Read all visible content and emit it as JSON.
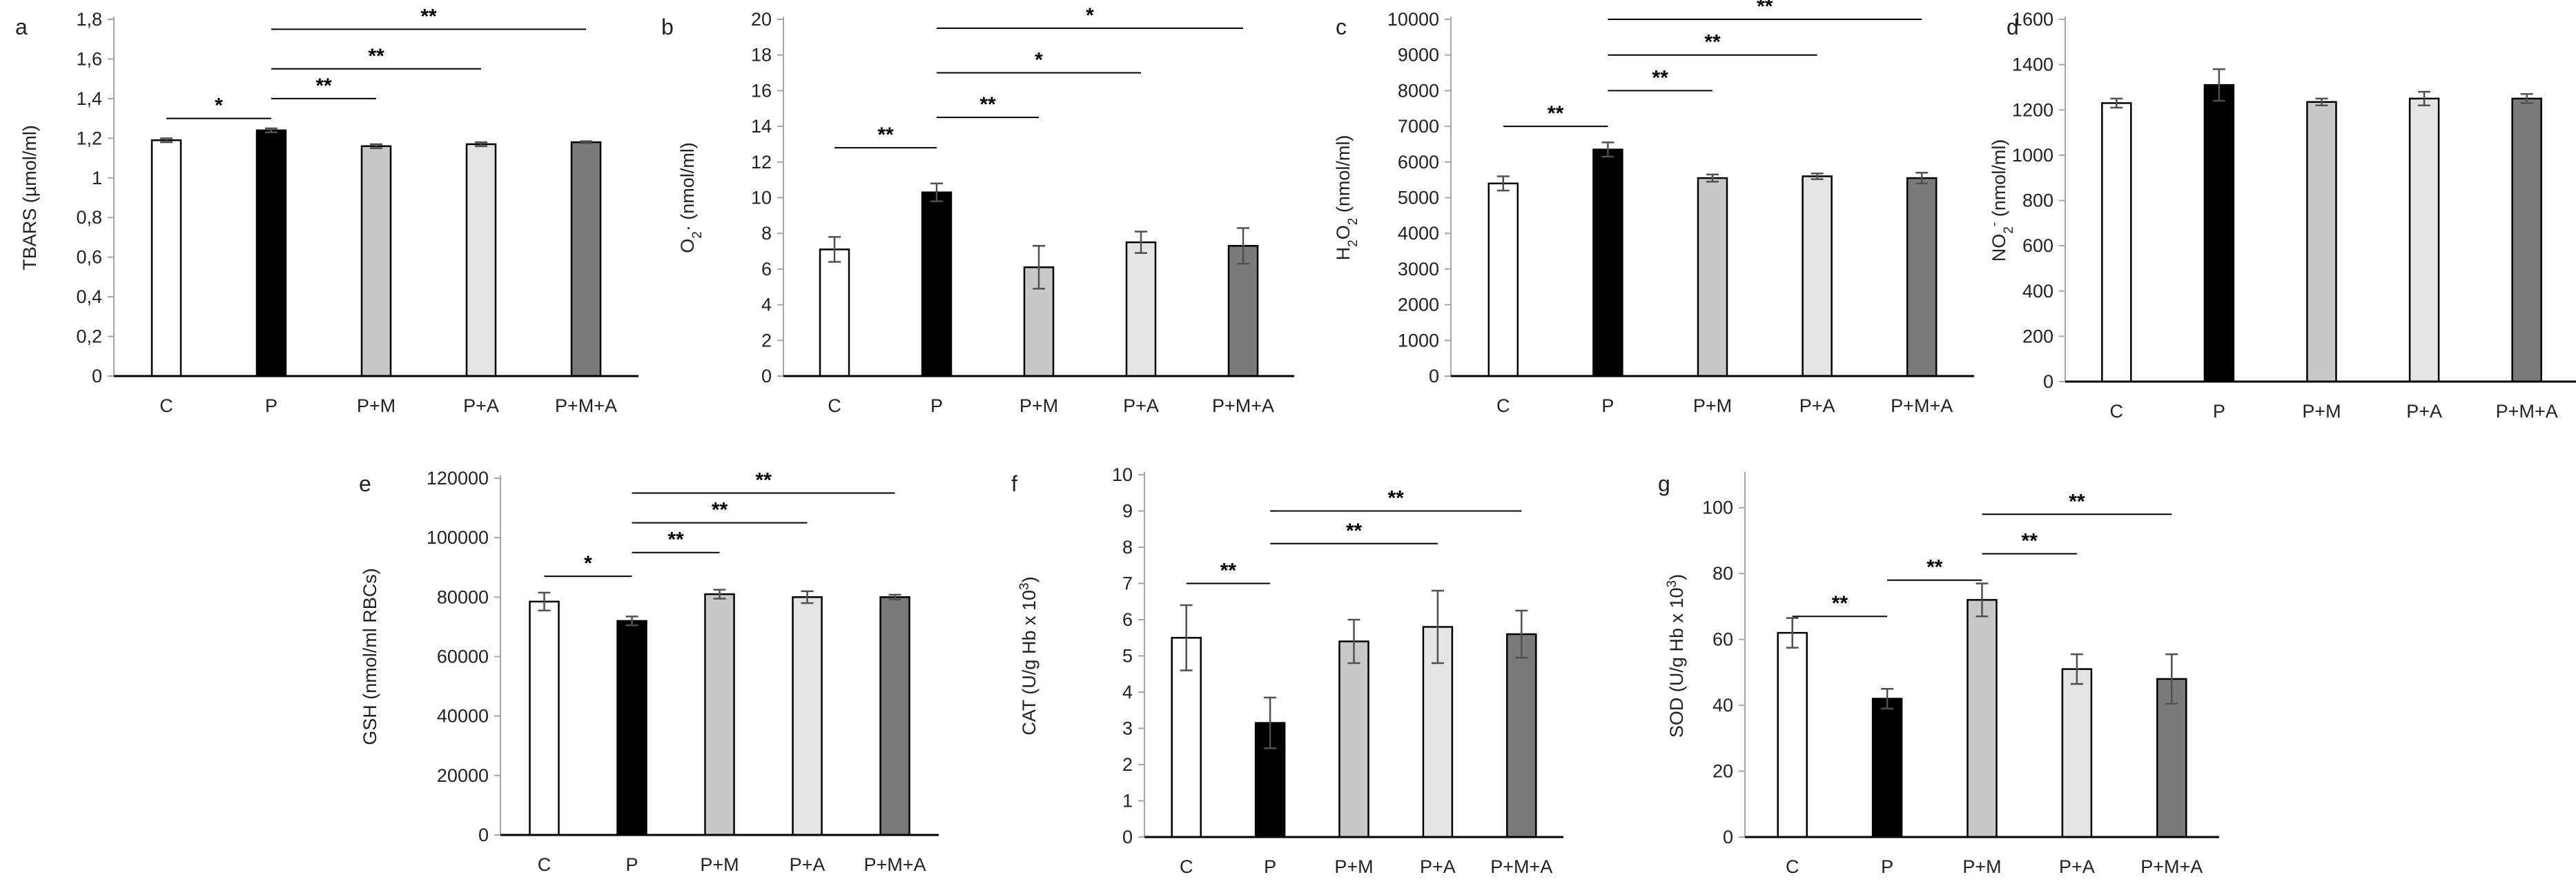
{
  "figure": {
    "title": ""
  },
  "colors": {
    "C": "#ffffff",
    "P": "#000000",
    "P+M": "#c8c8c8",
    "P+A": "#e4e4e4",
    "P+M+A": "#7a7a7a",
    "stroke": "#000000",
    "axis": "#a6a6a6",
    "errorbar": "#505050"
  },
  "chart_data": [
    {
      "panel_label": "a",
      "type": "bar",
      "title": "",
      "ylabel_parts": [
        {
          "t": "TBARS (µmol/ml)"
        }
      ],
      "categories": [
        "C",
        "P",
        "P+M",
        "P+A",
        "P+M+A"
      ],
      "values": [
        1.19,
        1.24,
        1.16,
        1.17,
        1.18
      ],
      "errors": [
        0.01,
        0.01,
        0.01,
        0.01,
        0.005
      ],
      "ylim": [
        0,
        1.8
      ],
      "ytick_values": [
        0,
        0.2,
        0.4,
        0.6,
        0.8,
        1,
        1.2,
        1.4,
        1.6,
        1.8
      ],
      "ytick_labels": [
        "0",
        "0,2",
        "0,4",
        "0,6",
        "0,8",
        "1",
        "1,2",
        "1,4",
        "1,6",
        "1,8"
      ],
      "significance": [
        {
          "from": 0,
          "to": 1,
          "level": 1.3,
          "label": "*"
        },
        {
          "from": 1,
          "to": 2,
          "level": 1.4,
          "label": "**"
        },
        {
          "from": 1,
          "to": 3,
          "level": 1.55,
          "label": "**"
        },
        {
          "from": 1,
          "to": 4,
          "level": 1.75,
          "label": "**"
        }
      ]
    },
    {
      "panel_label": "b",
      "type": "bar",
      "title": "",
      "ylabel_parts": [
        {
          "t": "O"
        },
        {
          "t": "2",
          "s": "sub"
        },
        {
          "t": "· (nmol/ml)"
        }
      ],
      "categories": [
        "C",
        "P",
        "P+M",
        "P+A",
        "P+M+A"
      ],
      "values": [
        7.1,
        10.3,
        6.1,
        7.5,
        7.3
      ],
      "errors": [
        0.7,
        0.5,
        1.2,
        0.6,
        1.0
      ],
      "ylim": [
        0,
        20
      ],
      "ytick_values": [
        0,
        2,
        4,
        6,
        8,
        10,
        12,
        14,
        16,
        18,
        20
      ],
      "ytick_labels": [
        "0",
        "2",
        "4",
        "6",
        "8",
        "10",
        "12",
        "14",
        "16",
        "18",
        "20"
      ],
      "significance": [
        {
          "from": 0,
          "to": 1,
          "level": 12.8,
          "label": "**"
        },
        {
          "from": 1,
          "to": 2,
          "level": 14.5,
          "label": "**"
        },
        {
          "from": 1,
          "to": 3,
          "level": 17.0,
          "label": "*"
        },
        {
          "from": 1,
          "to": 4,
          "level": 19.5,
          "label": "*"
        }
      ]
    },
    {
      "panel_label": "c",
      "type": "bar",
      "title": "",
      "ylabel_parts": [
        {
          "t": "H"
        },
        {
          "t": "2",
          "s": "sub"
        },
        {
          "t": "O"
        },
        {
          "t": "2",
          "s": "sub"
        },
        {
          "t": " (nmol/ml)"
        }
      ],
      "categories": [
        "C",
        "P",
        "P+M",
        "P+A",
        "P+M+A"
      ],
      "values": [
        5400,
        6350,
        5550,
        5600,
        5550
      ],
      "errors": [
        200,
        200,
        100,
        80,
        150
      ],
      "ylim": [
        0,
        10000
      ],
      "ytick_values": [
        0,
        1000,
        2000,
        3000,
        4000,
        5000,
        6000,
        7000,
        8000,
        9000,
        10000
      ],
      "ytick_labels": [
        "0",
        "1000",
        "2000",
        "3000",
        "4000",
        "5000",
        "6000",
        "7000",
        "8000",
        "9000",
        "10000"
      ],
      "significance": [
        {
          "from": 0,
          "to": 1,
          "level": 7000,
          "label": "**"
        },
        {
          "from": 1,
          "to": 2,
          "level": 8000,
          "label": "**"
        },
        {
          "from": 1,
          "to": 3,
          "level": 9000,
          "label": "**"
        },
        {
          "from": 1,
          "to": 4,
          "level": 10000,
          "label": "**"
        }
      ]
    },
    {
      "panel_label": "d",
      "type": "bar",
      "title": "",
      "ylabel_parts": [
        {
          "t": "NO"
        },
        {
          "t": "2",
          "s": "sub"
        },
        {
          "t": "-",
          "s": "super"
        },
        {
          "t": " (nmol/ml)"
        }
      ],
      "categories": [
        "C",
        "P",
        "P+M",
        "P+A",
        "P+M+A"
      ],
      "values": [
        1230,
        1310,
        1235,
        1250,
        1250
      ],
      "errors": [
        20,
        70,
        15,
        30,
        20
      ],
      "ylim": [
        0,
        1600
      ],
      "ytick_values": [
        0,
        200,
        400,
        600,
        800,
        1000,
        1200,
        1400,
        1600
      ],
      "ytick_labels": [
        "0",
        "200",
        "400",
        "600",
        "800",
        "1000",
        "1200",
        "1400",
        "1600"
      ],
      "significance": []
    },
    {
      "panel_label": "e",
      "type": "bar",
      "title": "",
      "ylabel_parts": [
        {
          "t": "GSH (nmol/ml RBCs)"
        }
      ],
      "categories": [
        "C",
        "P",
        "P+M",
        "P+A",
        "P+M+A"
      ],
      "values": [
        78500,
        72000,
        81000,
        80000,
        80000
      ],
      "errors": [
        3000,
        1500,
        1500,
        2000,
        800
      ],
      "ylim": [
        0,
        120000
      ],
      "ytick_values": [
        0,
        20000,
        40000,
        60000,
        80000,
        100000,
        120000
      ],
      "ytick_labels": [
        "0",
        "20000",
        "40000",
        "60000",
        "80000",
        "100000",
        "120000"
      ],
      "significance": [
        {
          "from": 0,
          "to": 1,
          "level": 87000,
          "label": "*"
        },
        {
          "from": 1,
          "to": 2,
          "level": 95000,
          "label": "**"
        },
        {
          "from": 1,
          "to": 3,
          "level": 105000,
          "label": "**"
        },
        {
          "from": 1,
          "to": 4,
          "level": 115000,
          "label": "**"
        }
      ]
    },
    {
      "panel_label": "f",
      "type": "bar",
      "title": "",
      "ylabel_parts": [
        {
          "t": "CAT (U/g Hb x 10"
        },
        {
          "t": "3",
          "s": "super"
        },
        {
          "t": ")"
        }
      ],
      "categories": [
        "C",
        "P",
        "P+M",
        "P+A",
        "P+M+A"
      ],
      "values": [
        5.5,
        3.15,
        5.4,
        5.8,
        5.6
      ],
      "errors": [
        0.9,
        0.7,
        0.6,
        1.0,
        0.65
      ],
      "ylim": [
        0,
        10
      ],
      "ytick_values": [
        0,
        1,
        2,
        3,
        4,
        5,
        6,
        7,
        8,
        9,
        10
      ],
      "ytick_labels": [
        "0",
        "1",
        "2",
        "3",
        "4",
        "5",
        "6",
        "7",
        "8",
        "9",
        "10"
      ],
      "significance": [
        {
          "from": 0,
          "to": 1,
          "level": 7.0,
          "label": "**"
        },
        {
          "from": 1,
          "to": 3,
          "level": 8.1,
          "label": "**"
        },
        {
          "from": 1,
          "to": 4,
          "level": 9.0,
          "label": "**"
        }
      ]
    },
    {
      "panel_label": "g",
      "type": "bar",
      "title": "",
      "ylabel_parts": [
        {
          "t": "SOD (U/g Hb x 10"
        },
        {
          "t": "3",
          "s": "super"
        },
        {
          "t": ")"
        }
      ],
      "categories": [
        "C",
        "P",
        "P+M",
        "P+A",
        "P+M+A"
      ],
      "values": [
        62,
        42,
        72,
        51,
        48
      ],
      "errors": [
        4.5,
        3,
        5,
        4.5,
        7.5
      ],
      "ylim": [
        0,
        110
      ],
      "ytick_values": [
        0,
        20,
        40,
        60,
        80,
        100
      ],
      "ytick_labels": [
        "0",
        "20",
        "40",
        "60",
        "80",
        "100"
      ],
      "significance": [
        {
          "from": 0,
          "to": 1,
          "level": 67,
          "label": "**"
        },
        {
          "from": 1,
          "to": 2,
          "level": 78,
          "label": "**"
        },
        {
          "from": 2,
          "to": 3,
          "level": 86,
          "label": "**"
        },
        {
          "from": 2,
          "to": 4,
          "level": 98,
          "label": "**"
        }
      ]
    }
  ]
}
